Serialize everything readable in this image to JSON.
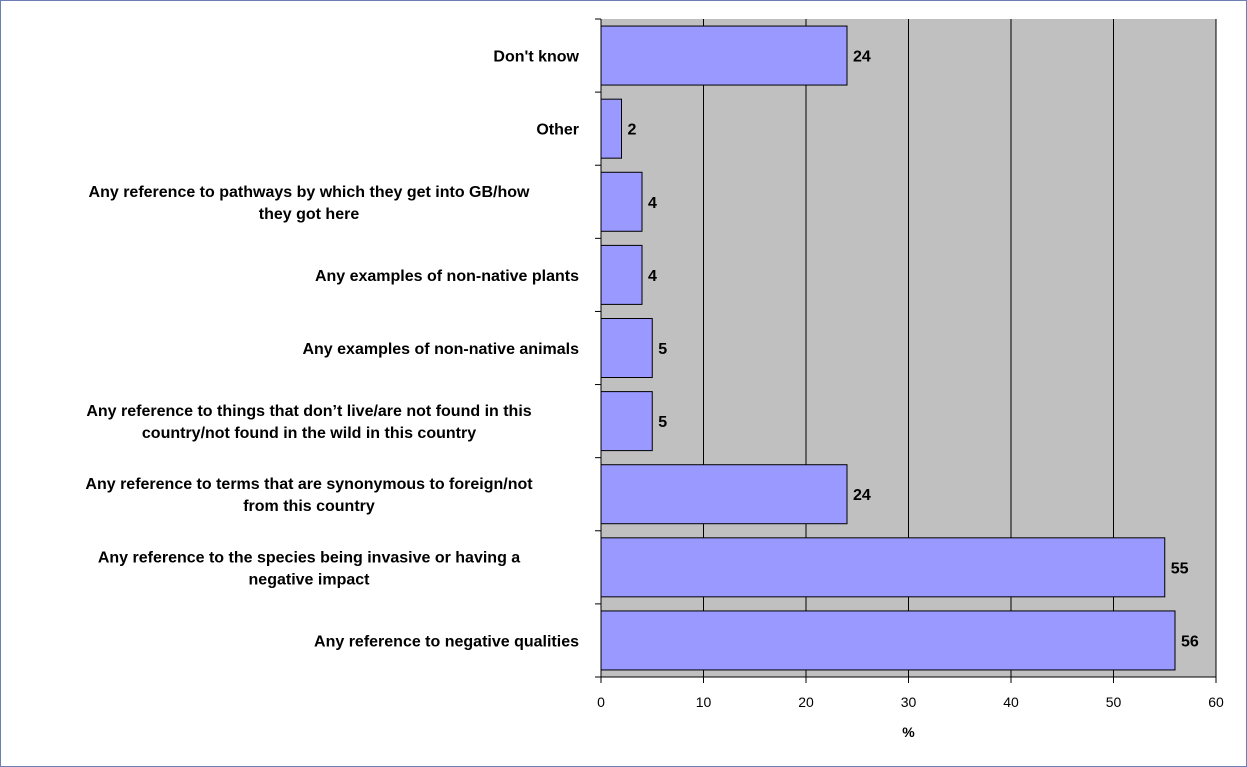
{
  "chart_data": {
    "type": "bar",
    "orientation": "horizontal",
    "categories": [
      "Don't know",
      "Other",
      "Any reference to pathways by which they get into GB/how they got here",
      "Any examples of non-native plants",
      "Any examples of non-native animals",
      "Any reference to things that don’t live/are not found in this country/not found in the wild in this country",
      "Any reference to terms that are synonymous to foreign/not from this country",
      "Any reference to the species being invasive or having a negative impact",
      "Any reference to negative qualities"
    ],
    "category_lines": [
      [
        "Don't know"
      ],
      [
        "Other"
      ],
      [
        "Any reference to pathways by which they get into GB/how",
        "they got here"
      ],
      [
        "Any examples of non-native plants"
      ],
      [
        "Any examples of non-native animals"
      ],
      [
        "Any reference to things that don’t live/are not found in this",
        "country/not found in the wild in this country"
      ],
      [
        "Any reference to terms that are synonymous to foreign/not",
        "from this country"
      ],
      [
        "Any reference to the species being invasive or having a",
        "negative impact"
      ],
      [
        "Any reference to negative qualities"
      ]
    ],
    "values": [
      24,
      2,
      4,
      4,
      5,
      5,
      24,
      55,
      56
    ],
    "data_labels": [
      "24",
      "2",
      "4",
      "4",
      "5",
      "5",
      "24",
      "55",
      "56"
    ],
    "title": "",
    "xlabel": "%",
    "ylabel": "",
    "xlim": [
      0,
      60
    ],
    "xticks": [
      0,
      10,
      20,
      30,
      40,
      50,
      60
    ],
    "xtick_labels": [
      "0",
      "10",
      "20",
      "30",
      "40",
      "50",
      "60"
    ],
    "grid": "vertical",
    "legend": "none",
    "colors": {
      "bar_fill": "#9999ff",
      "bar_stroke": "#000000",
      "plot_background": "#c0c0c0",
      "gridline": "#000000",
      "frame_border": "#6a7fb5"
    }
  }
}
